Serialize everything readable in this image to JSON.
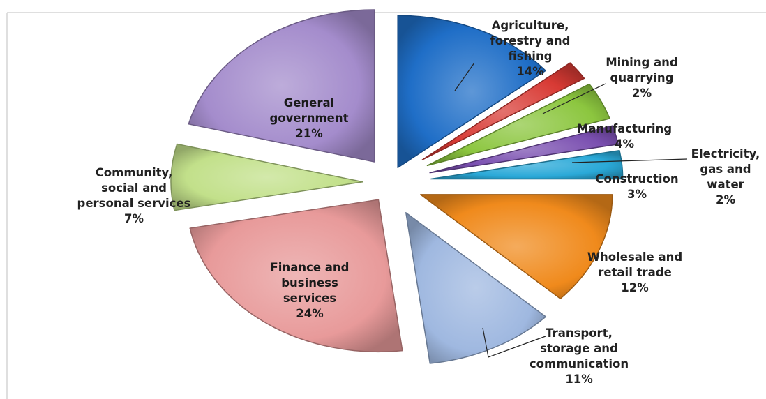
{
  "chart_data": {
    "type": "pie",
    "exploded": true,
    "title": "",
    "slices": [
      {
        "label": "Agriculture, forestry and fishing",
        "value": 14,
        "display": "14%",
        "color": "#1f6ec7"
      },
      {
        "label": "Mining and quarrying",
        "value": 2,
        "display": "2%",
        "color": "#d83a34"
      },
      {
        "label": "Manufacturing",
        "value": 4,
        "display": "4%",
        "color": "#8cc63f"
      },
      {
        "label": "Electricity, gas and water",
        "value": 2,
        "display": "2%",
        "color": "#7a4fb0"
      },
      {
        "label": "Construction",
        "value": 3,
        "display": "3%",
        "color": "#2aa9d8"
      },
      {
        "label": "Wholesale and retail trade",
        "value": 12,
        "display": "12%",
        "color": "#f08a1c"
      },
      {
        "label": "Transport, storage and communication",
        "value": 11,
        "display": "11%",
        "color": "#9fb8e0"
      },
      {
        "label": "Finance and business services",
        "value": 24,
        "display": "24%",
        "color": "#e89a9a"
      },
      {
        "label": "Community, social and personal services",
        "value": 7,
        "display": "7%",
        "color": "#c2e08a"
      },
      {
        "label": "General government",
        "value": 21,
        "display": "21%",
        "color": "#a48ccc"
      }
    ],
    "label_lines": [
      [
        "Agriculture,",
        "forestry and",
        "fishing",
        "14%"
      ],
      [
        "Mining and",
        "quarrying",
        "2%"
      ],
      [
        "Manufacturing",
        "4%"
      ],
      [
        "Electricity,",
        "gas and",
        "water",
        "2%"
      ],
      [
        "Construction",
        "3%"
      ],
      [
        "Wholesale and",
        "retail trade",
        "12%"
      ],
      [
        "Transport,",
        "storage and",
        "communication",
        "11%"
      ],
      [
        "Finance and",
        "business",
        "services",
        "24%"
      ],
      [
        "Community,",
        "social and",
        "personal services",
        "7%"
      ],
      [
        "General",
        "government",
        "21%"
      ]
    ]
  }
}
